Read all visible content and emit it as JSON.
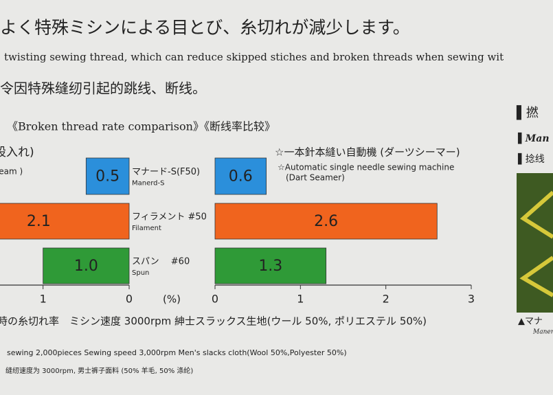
{
  "header": {
    "line_ja": "よく特殊ミシンによる目とび、糸切れが減少します。",
    "line_en": "twisting sewing thread, which can reduce skipped stiches and broken threads when sewing wit",
    "line_zh": "令因特殊缝纫引起的跳线、断线。",
    "section_title": "《Broken thread rate comparison》《断线率比较》"
  },
  "chart_data": [
    {
      "type": "hbar",
      "title": "股入れ)",
      "subtitle": "seam )",
      "xlabel": "(%)",
      "categories": [
        null,
        null,
        null
      ],
      "values": [
        0.5,
        2.1,
        1
      ],
      "value_labels": [
        "0.5",
        "2.1",
        "1.0"
      ],
      "colors": [
        "#2b8fdb",
        "#f0641e",
        "#2f9a37"
      ],
      "xlim": [
        1.5,
        0
      ],
      "xticks": [
        1,
        0
      ]
    },
    {
      "type": "hbar",
      "title": "☆一本針本縫い自動機 (ダーツシーマー)",
      "subtitle": "☆Automatic  single needle sewing machine",
      "subtitle2": "(Dart Seamer)",
      "categories": [
        "マナード-S(F50)",
        "フィラメント #50",
        "スパン　 #60"
      ],
      "category_sublabels": [
        "Manerd-S",
        "Filament",
        "Spun"
      ],
      "values": [
        0.6,
        2.6,
        1.3
      ],
      "value_labels": [
        "0.6",
        "2.6",
        "1.3"
      ],
      "colors": [
        "#2b8fdb",
        "#f0641e",
        "#2f9a37"
      ],
      "xlim": [
        0,
        3
      ],
      "xticks": [
        0,
        1,
        2,
        3
      ]
    }
  ],
  "footnotes": [
    "時の糸切れ率　ミシン速度 3000rpm 紳士スラックス生地(ウール 50%, ポリエステル 50%)",
    "sewing 2,000pieces   Sewing speed 3,000rpm   Men's slacks cloth(Wool 50%,Polyester 50%)",
    "缝纫速度为 3000rpm, 男士裤子面料 (50% 羊毛, 50% 涤纶)"
  ],
  "side": {
    "title": "▌撚",
    "line1": "▌Man",
    "line2": "▌捻线",
    "caption": "▲マナ",
    "caption2": "Manerd"
  }
}
